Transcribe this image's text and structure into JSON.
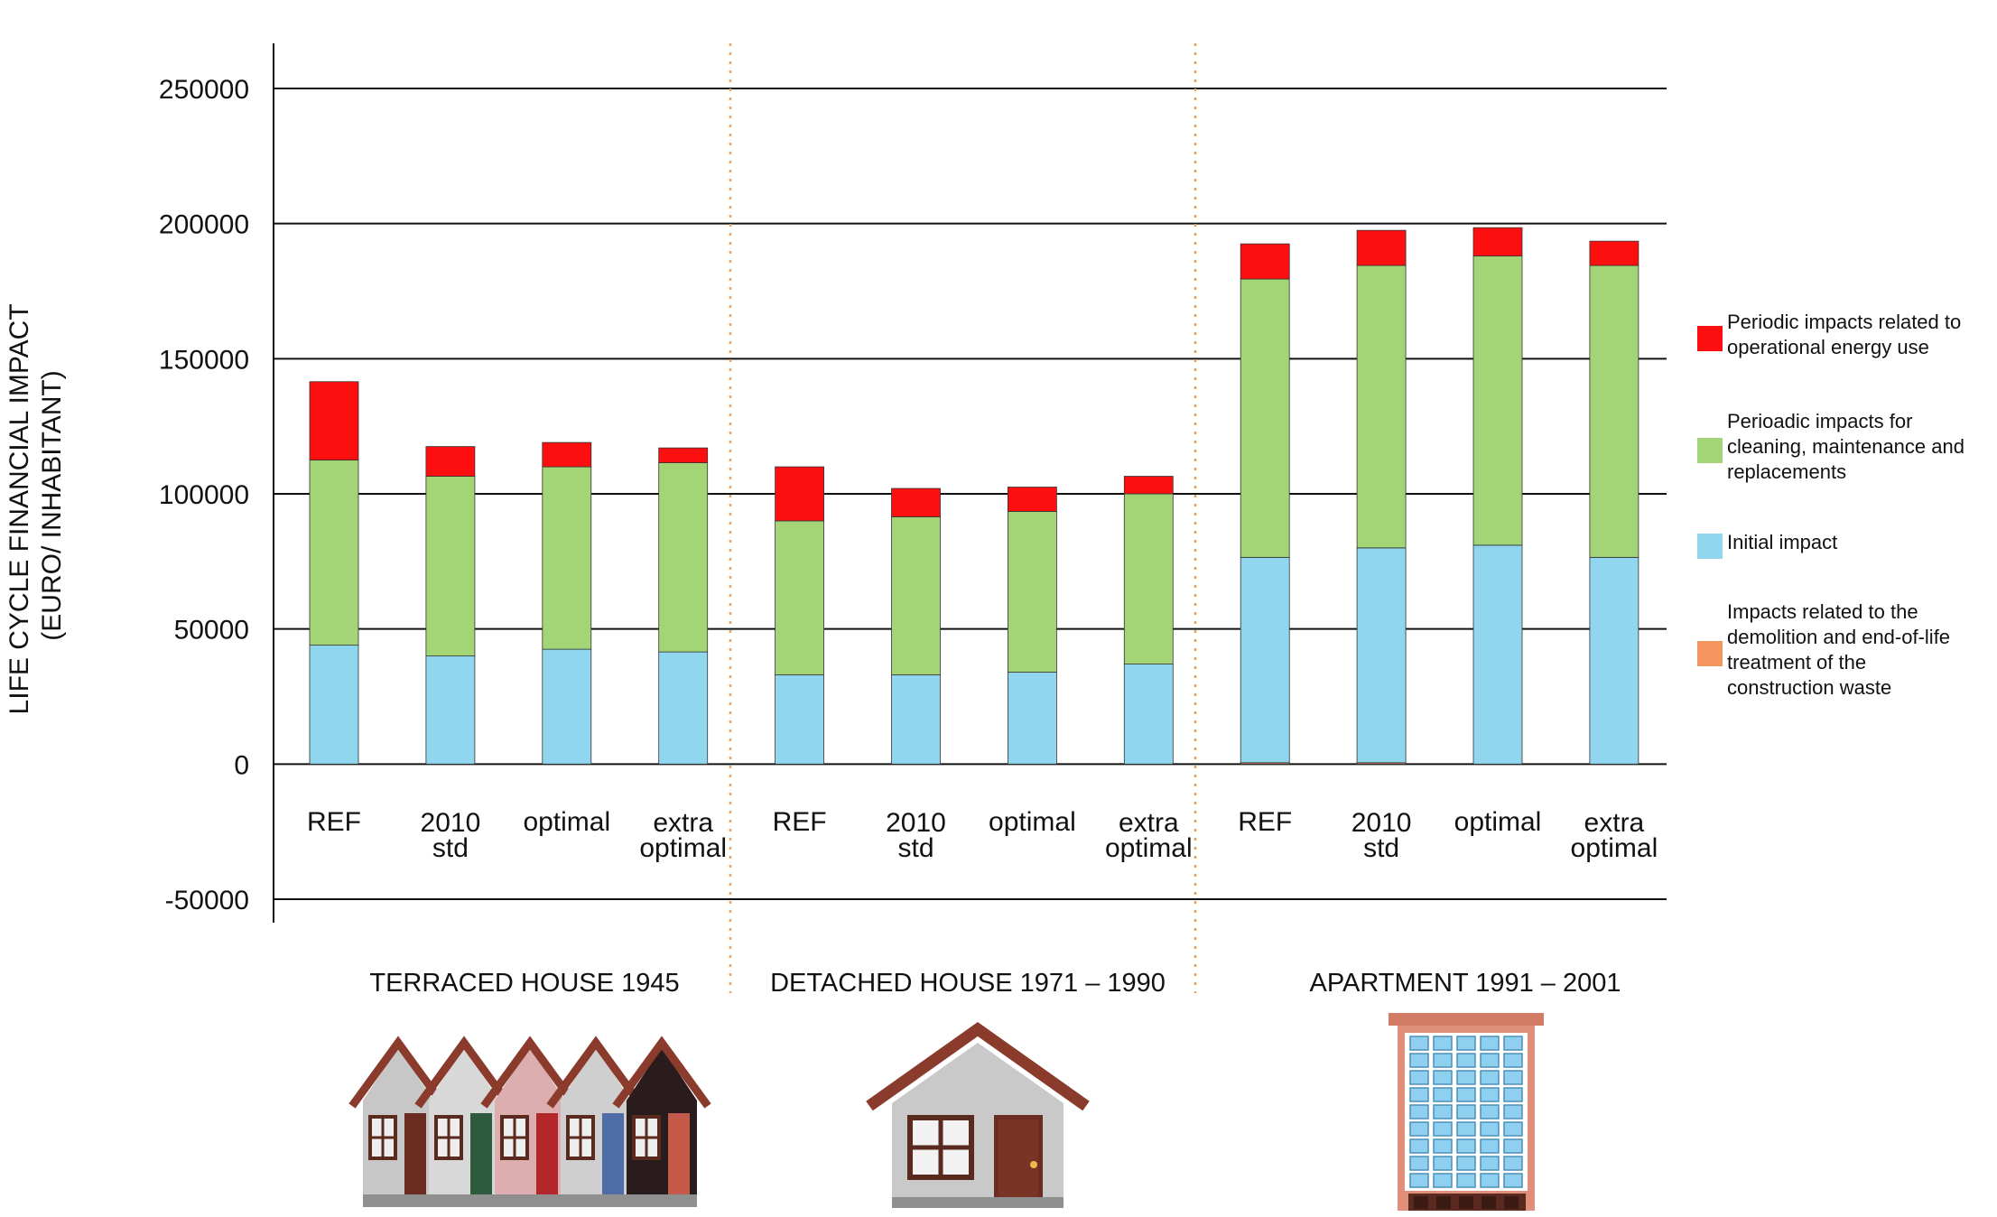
{
  "chart_data": {
    "type": "bar",
    "stacked": true,
    "ylabel_lines": [
      "LIFE CYCLE FINANCIAL IMPACT",
      "(EURO/ INHABITANT)"
    ],
    "ylim": [
      -50000,
      250000
    ],
    "yticks": [
      250000,
      200000,
      150000,
      100000,
      50000,
      0,
      -50000
    ],
    "tick_labels": [
      "250000",
      "200000",
      "150000",
      "100000",
      "50000",
      "0",
      "-50000"
    ],
    "grid": true,
    "legend_placement": "right",
    "groups": [
      {
        "title": "TERRACED HOUSE 1945",
        "icon": "terraced-houses-illustration"
      },
      {
        "title": "DETACHED HOUSE 1971 – 1990",
        "icon": "detached-house-illustration"
      },
      {
        "title": "APARTMENT 1991 – 2001",
        "icon": "apartment-building-illustration"
      }
    ],
    "categories": [
      {
        "lines": [
          "REF"
        ]
      },
      {
        "lines": [
          "2010",
          "std"
        ]
      },
      {
        "lines": [
          "optimal"
        ]
      },
      {
        "lines": [
          "extra",
          "optimal"
        ]
      },
      {
        "lines": [
          "REF"
        ]
      },
      {
        "lines": [
          "2010",
          "std"
        ]
      },
      {
        "lines": [
          "optimal"
        ]
      },
      {
        "lines": [
          "extra",
          "optimal"
        ]
      },
      {
        "lines": [
          "REF"
        ]
      },
      {
        "lines": [
          "2010",
          "std"
        ]
      },
      {
        "lines": [
          "optimal"
        ]
      },
      {
        "lines": [
          "extra",
          "optimal"
        ]
      }
    ],
    "series": [
      {
        "name": "Impacts related to the demolition and end-of-life treatment of the construction waste",
        "color": "#f4955f",
        "values": [
          0,
          0,
          0,
          0,
          0,
          0,
          0,
          0,
          500,
          500,
          0,
          0
        ]
      },
      {
        "name": "Initial impact",
        "color": "#8fd6ee",
        "values": [
          44000,
          40000,
          42500,
          41500,
          33000,
          33000,
          34000,
          37000,
          76000,
          79500,
          81000,
          76500
        ]
      },
      {
        "name": "Perioadic impacts for cleaning, maintenance and replacements",
        "color": "#a3d576",
        "values": [
          68500,
          66500,
          67500,
          70000,
          57000,
          58500,
          59500,
          63000,
          103000,
          104500,
          107000,
          108000
        ]
      },
      {
        "name": "Periodic impacts related to operational energy use",
        "color": "#fe0f0f",
        "values": [
          29000,
          11000,
          9000,
          5500,
          20000,
          10500,
          9000,
          6500,
          13000,
          13000,
          10500,
          9000
        ]
      }
    ],
    "legend_order": [
      3,
      2,
      1,
      0
    ],
    "legend": [
      {
        "lines": [
          "Periodic impacts related to",
          "operational energy use"
        ]
      },
      {
        "lines": [
          "Perioadic impacts for",
          "cleaning, maintenance and",
          "replacements"
        ]
      },
      {
        "lines": [
          "Initial impact"
        ]
      },
      {
        "lines": [
          "Impacts related to the",
          "demolition and end-of-life",
          "treatment of the",
          "construction waste"
        ]
      }
    ],
    "separator_color": "#f0a050"
  }
}
